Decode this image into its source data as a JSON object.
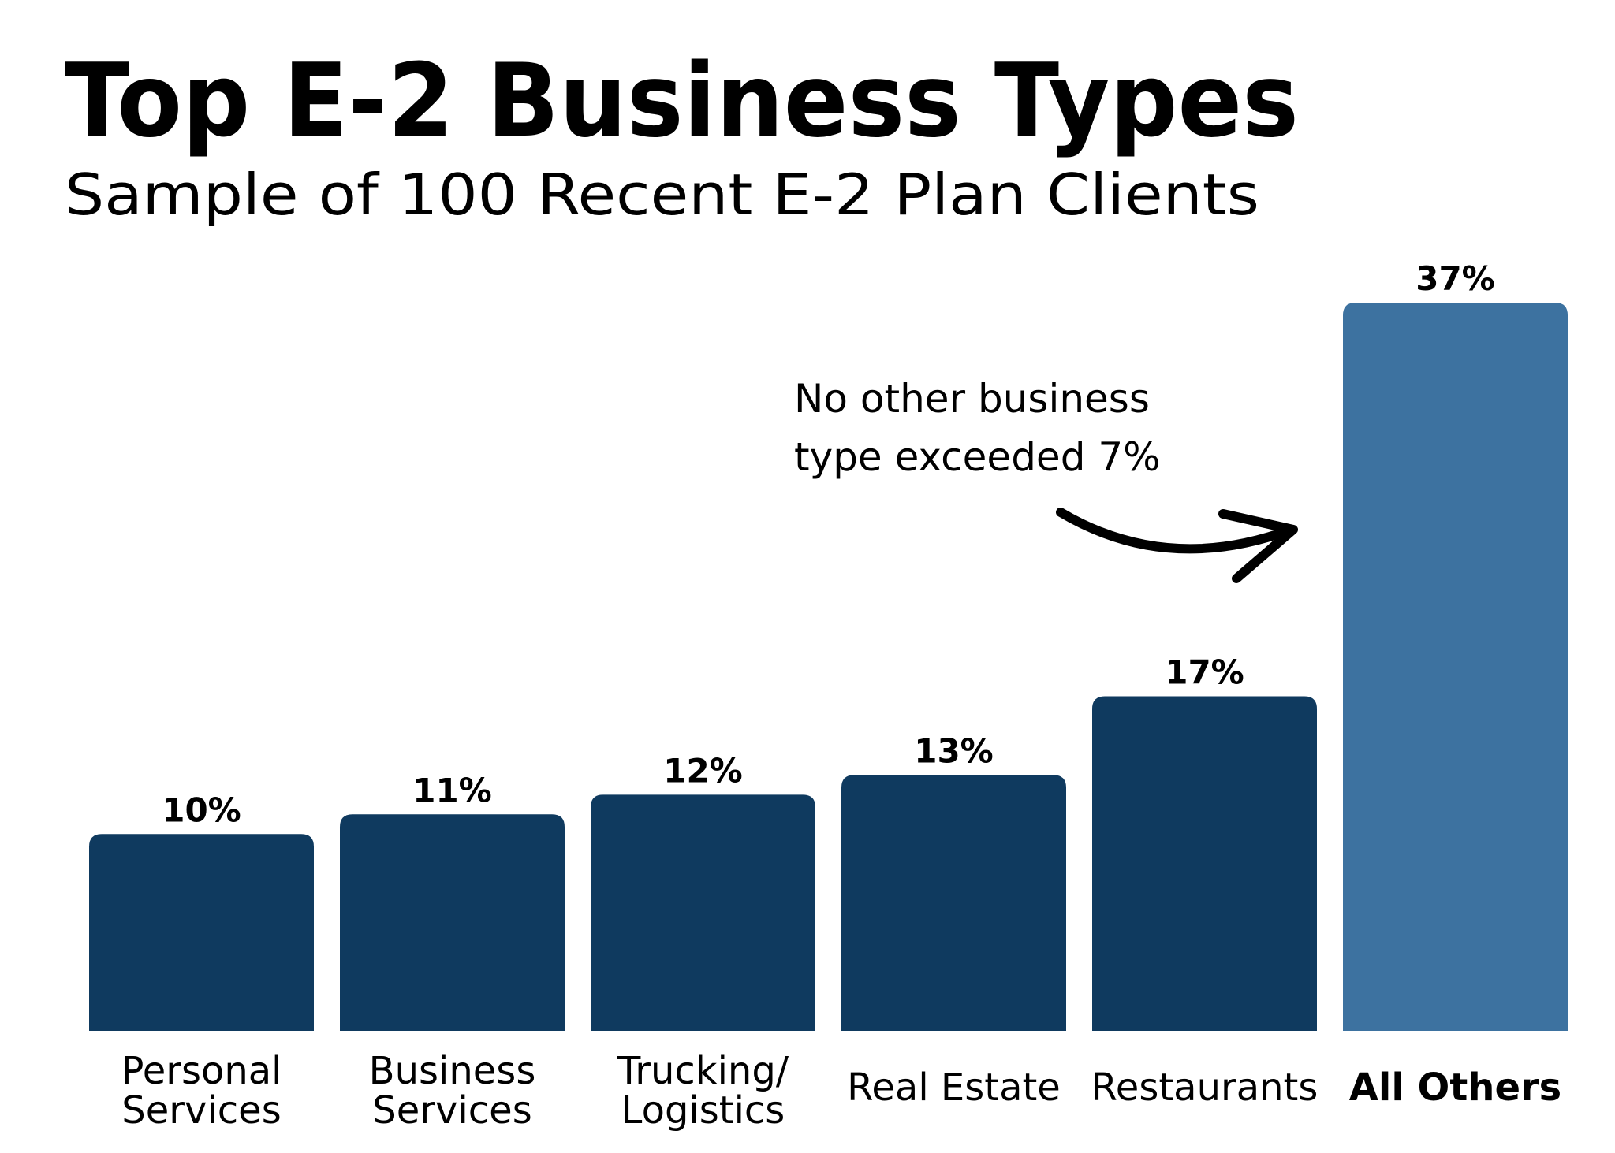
{
  "chart_data": {
    "type": "bar",
    "title": "Top E-2 Business Types",
    "subtitle": "Sample of 100 Recent E-2 Plan Clients",
    "categories": [
      [
        "Personal",
        "Services"
      ],
      [
        "Business",
        "Services"
      ],
      [
        "Trucking/",
        "Logistics"
      ],
      [
        "Real Estate"
      ],
      [
        "Restaurants"
      ],
      [
        "All Others"
      ]
    ],
    "values": [
      10,
      11,
      12,
      13,
      17,
      37
    ],
    "value_labels": [
      "10%",
      "11%",
      "12%",
      "13%",
      "17%",
      "37%"
    ],
    "colors": [
      "#0f3a5f",
      "#0f3a5f",
      "#0f3a5f",
      "#0f3a5f",
      "#0f3a5f",
      "#3d72a0"
    ],
    "highlight_color": "#3d72a0",
    "annotation": [
      "No other business",
      "type exceeded 7%"
    ]
  }
}
